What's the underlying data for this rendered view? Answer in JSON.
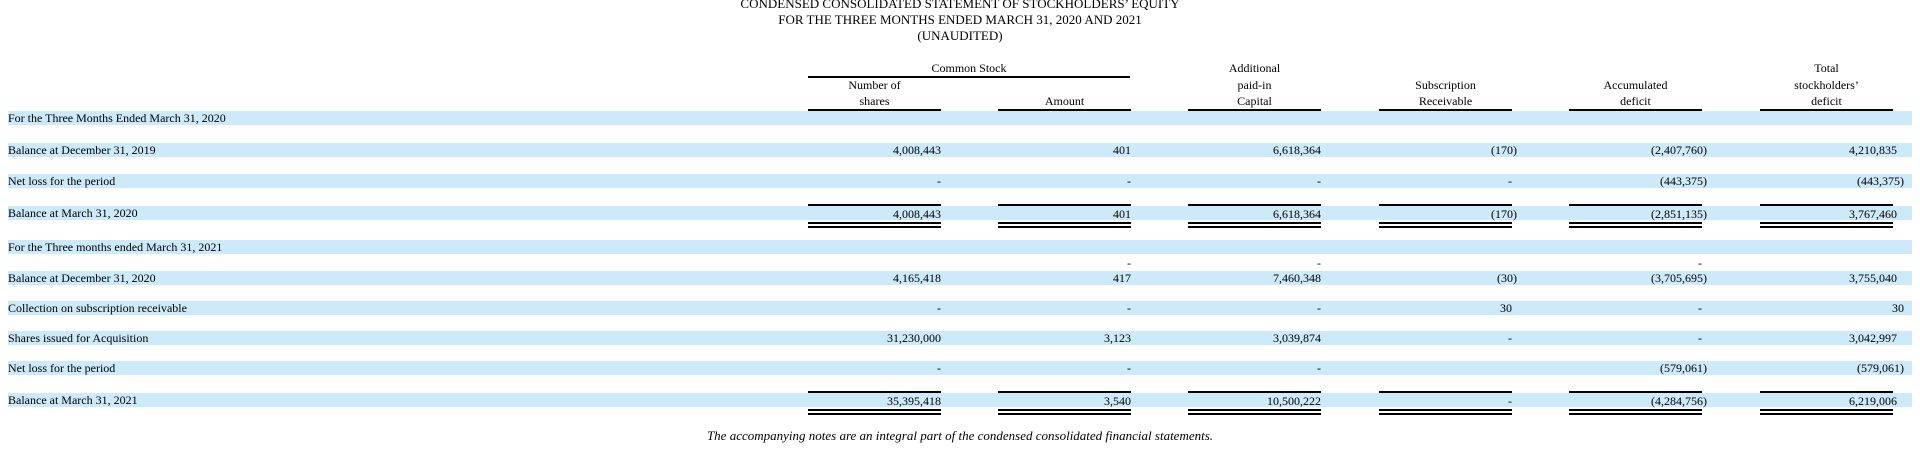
{
  "title": {
    "line1": "CONDENSED CONSOLIDATED STATEMENT OF STOCKHOLDERS’ EQUITY",
    "line2": "FOR THE THREE MONTHS ENDED MARCH 31, 2020 AND 2021",
    "line3": "(UNAUDITED)"
  },
  "headers": {
    "common_stock": "Common Stock",
    "shares_l1": "Number of",
    "shares_l2": "shares",
    "amount": "Amount",
    "apic_l1": "Additional",
    "apic_l2": "paid-in",
    "apic_l3": "Capital",
    "sub_l1": "Subscription",
    "sub_l2": "Receivable",
    "acc_l1": "Accumulated",
    "acc_l2": "deficit",
    "tot_l1": "Total",
    "tot_l2": "stockholders’",
    "tot_l3": "deficit"
  },
  "rows": [
    {
      "label": "For the Three Months Ended March 31, 2020",
      "values": [
        "",
        "",
        "",
        "",
        "",
        ""
      ]
    },
    {
      "label": "Balance at December 31, 2019",
      "values": [
        "4,008,443",
        "401",
        "6,618,364",
        "(170)",
        "(2,407,760)",
        "4,210,835"
      ]
    },
    {
      "label": "Net loss for the period",
      "values": [
        "-",
        "-",
        "-",
        "-",
        "(443,375)",
        "(443,375)"
      ]
    },
    {
      "label": "Balance at March 31, 2020",
      "values": [
        "4,008,443",
        "401",
        "6,618,364",
        "(170)",
        "(2,851,135)",
        "3,767,460"
      ]
    },
    {
      "label": "For the Three months ended March 31, 2021",
      "values": [
        "",
        "",
        "",
        "",
        "",
        ""
      ]
    },
    {
      "label": "",
      "values": [
        "",
        "-",
        "-",
        "",
        "-",
        ""
      ]
    },
    {
      "label": "Balance at December 31, 2020",
      "values": [
        "4,165,418",
        "417",
        "7,460,348",
        "(30)",
        "(3,705,695)",
        "3,755,040"
      ]
    },
    {
      "label": "Collection on subscription receivable",
      "values": [
        "-",
        "-",
        "-",
        "30",
        "-",
        "30"
      ]
    },
    {
      "label": "Shares issued for Acquisition",
      "values": [
        "31,230,000",
        "3,123",
        "3,039,874",
        "-",
        "-",
        "3,042,997"
      ]
    },
    {
      "label": "Net loss for the period",
      "values": [
        "-",
        "-",
        "-",
        "",
        "(579,061)",
        "(579,061)"
      ]
    },
    {
      "label": "Balance at March 31, 2021",
      "values": [
        "35,395,418",
        "3,540",
        "10,500,222",
        "-",
        "(4,284,756)",
        "6,219,006"
      ]
    }
  ],
  "footnote": "The accompanying notes are an integral part of the condensed consolidated financial statements."
}
